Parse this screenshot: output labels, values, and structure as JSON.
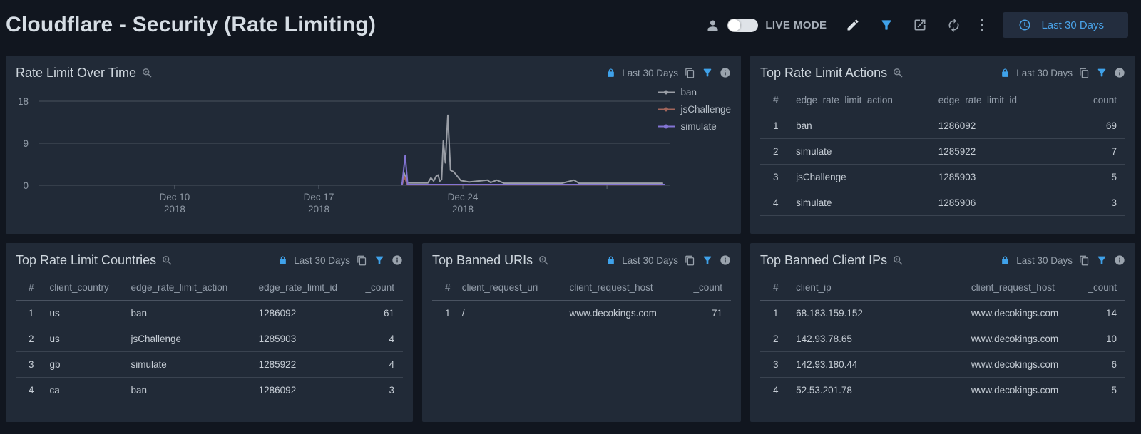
{
  "header": {
    "title": "Cloudflare - Security (Rate Limiting)",
    "live_mode_label": "LIVE MODE",
    "time_range_button": "Last 30 Days"
  },
  "colors": {
    "accent_blue": "#3fa2ea",
    "page_bg": "#11161f",
    "panel_bg": "#212a37",
    "series_ban": "#9a9ea6",
    "series_jschallenge": "#a2655b",
    "series_simulate": "#8374d4"
  },
  "panels": {
    "rate_limit_over_time": {
      "title": "Rate Limit Over Time",
      "time_range": "Last 30 Days"
    },
    "top_rate_limit_actions": {
      "title": "Top Rate Limit Actions",
      "time_range": "Last 30 Days",
      "columns": [
        "#",
        "edge_rate_limit_action",
        "edge_rate_limit_id",
        "_count"
      ],
      "rows": [
        [
          "1",
          "ban",
          "1286092",
          "69"
        ],
        [
          "2",
          "simulate",
          "1285922",
          "7"
        ],
        [
          "3",
          "jsChallenge",
          "1285903",
          "5"
        ],
        [
          "4",
          "simulate",
          "1285906",
          "3"
        ]
      ]
    },
    "top_rate_limit_countries": {
      "title": "Top Rate Limit Countries",
      "time_range": "Last 30 Days",
      "columns": [
        "#",
        "client_country",
        "edge_rate_limit_action",
        "edge_rate_limit_id",
        "_count"
      ],
      "rows": [
        [
          "1",
          "us",
          "ban",
          "1286092",
          "61"
        ],
        [
          "2",
          "us",
          "jsChallenge",
          "1285903",
          "4"
        ],
        [
          "3",
          "gb",
          "simulate",
          "1285922",
          "4"
        ],
        [
          "4",
          "ca",
          "ban",
          "1286092",
          "3"
        ]
      ]
    },
    "top_banned_uris": {
      "title": "Top Banned URIs",
      "time_range": "Last 30 Days",
      "columns": [
        "#",
        "client_request_uri",
        "client_request_host",
        "_count"
      ],
      "rows": [
        [
          "1",
          "/",
          "www.decokings.com",
          "71"
        ]
      ]
    },
    "top_banned_client_ips": {
      "title": "Top Banned Client IPs",
      "time_range": "Last 30 Days",
      "columns": [
        "#",
        "client_ip",
        "client_request_host",
        "_count"
      ],
      "rows": [
        [
          "1",
          "68.183.159.152",
          "www.decokings.com",
          "14"
        ],
        [
          "2",
          "142.93.78.65",
          "www.decokings.com",
          "10"
        ],
        [
          "3",
          "142.93.180.44",
          "www.decokings.com",
          "6"
        ],
        [
          "4",
          "52.53.201.78",
          "www.decokings.com",
          "5"
        ]
      ]
    }
  },
  "chart_data": {
    "type": "line",
    "title": "Rate Limit Over Time",
    "xlabel": "",
    "ylabel": "",
    "ylim": [
      0,
      18
    ],
    "y_ticks": [
      0,
      9,
      18
    ],
    "xlim": [
      0.42,
      31.08
    ],
    "x_unit": "days since 2018-12-03",
    "x_ticks": [
      {
        "pos": 7,
        "line1": "Dec 10",
        "line2": "2018"
      },
      {
        "pos": 14,
        "line1": "Dec 17",
        "line2": "2018"
      },
      {
        "pos": 21,
        "line1": "Dec 24",
        "line2": "2018"
      },
      {
        "pos": 28,
        "line1": "",
        "line2": ""
      }
    ],
    "legend_position": "right",
    "grid": true,
    "series": [
      {
        "name": "ban",
        "color": "#9a9ea6",
        "points": [
          [
            18.05,
            0.3
          ],
          [
            18.15,
            2.6
          ],
          [
            18.3,
            0.5
          ],
          [
            19.3,
            0.5
          ],
          [
            19.45,
            1.6
          ],
          [
            19.58,
            0.9
          ],
          [
            19.7,
            1.9
          ],
          [
            19.8,
            2.2
          ],
          [
            19.88,
            0.9
          ],
          [
            19.97,
            1.2
          ],
          [
            20.05,
            9.5
          ],
          [
            20.15,
            4.8
          ],
          [
            20.27,
            15.0
          ],
          [
            20.4,
            3.2
          ],
          [
            20.55,
            2.9
          ],
          [
            20.9,
            1.0
          ],
          [
            21.3,
            0.7
          ],
          [
            22.2,
            1.1
          ],
          [
            22.35,
            0.6
          ],
          [
            22.65,
            1.1
          ],
          [
            23.0,
            0.45
          ],
          [
            25.8,
            0.45
          ],
          [
            26.4,
            1.1
          ],
          [
            26.65,
            0.45
          ],
          [
            30.7,
            0.45
          ]
        ]
      },
      {
        "name": "jsChallenge",
        "color": "#a2655b",
        "points": [
          [
            18.05,
            0.1
          ],
          [
            18.17,
            1.8
          ],
          [
            18.3,
            0.1
          ],
          [
            30.7,
            0.1
          ]
        ]
      },
      {
        "name": "simulate",
        "color": "#8374d4",
        "points": [
          [
            18.05,
            0.2
          ],
          [
            18.2,
            6.4
          ],
          [
            18.32,
            0.15
          ],
          [
            30.8,
            0.15
          ]
        ]
      }
    ]
  }
}
